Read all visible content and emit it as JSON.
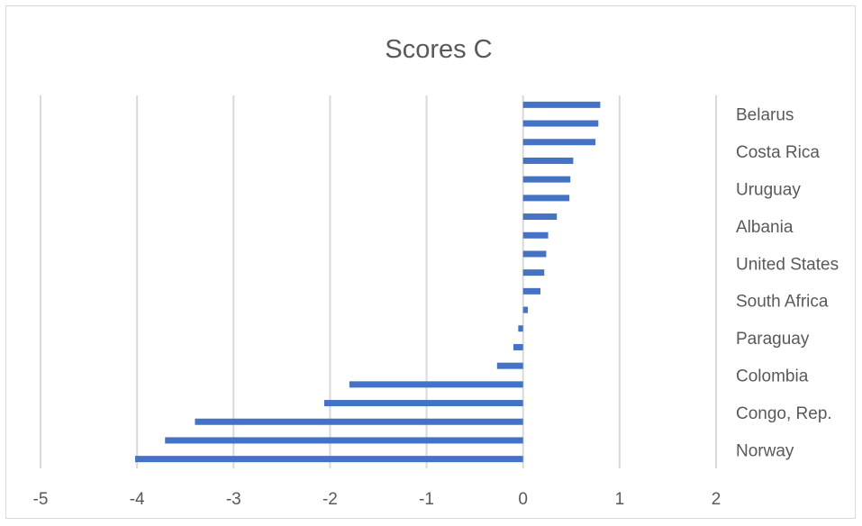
{
  "chart_data": {
    "type": "bar",
    "orientation": "horizontal",
    "title": "Scores C",
    "xlabel": "",
    "ylabel": "",
    "xlim": [
      -5,
      2
    ],
    "x_ticks": [
      -5,
      -4,
      -3,
      -2,
      -1,
      0,
      1,
      2
    ],
    "grid": true,
    "legend": "none",
    "bar_color": "#4472c4",
    "category_labels": [
      "Belarus",
      "Costa Rica",
      "Uruguay",
      "Albania",
      "United States",
      "South Africa",
      "Paraguay",
      "Colombia",
      "Congo, Rep.",
      "Norway"
    ],
    "values": [
      0.8,
      0.78,
      0.75,
      0.52,
      0.49,
      0.48,
      0.35,
      0.26,
      0.24,
      0.22,
      0.18,
      0.05,
      -0.05,
      -0.1,
      -0.27,
      -1.8,
      -2.06,
      -3.4,
      -3.71,
      -4.02
    ]
  }
}
